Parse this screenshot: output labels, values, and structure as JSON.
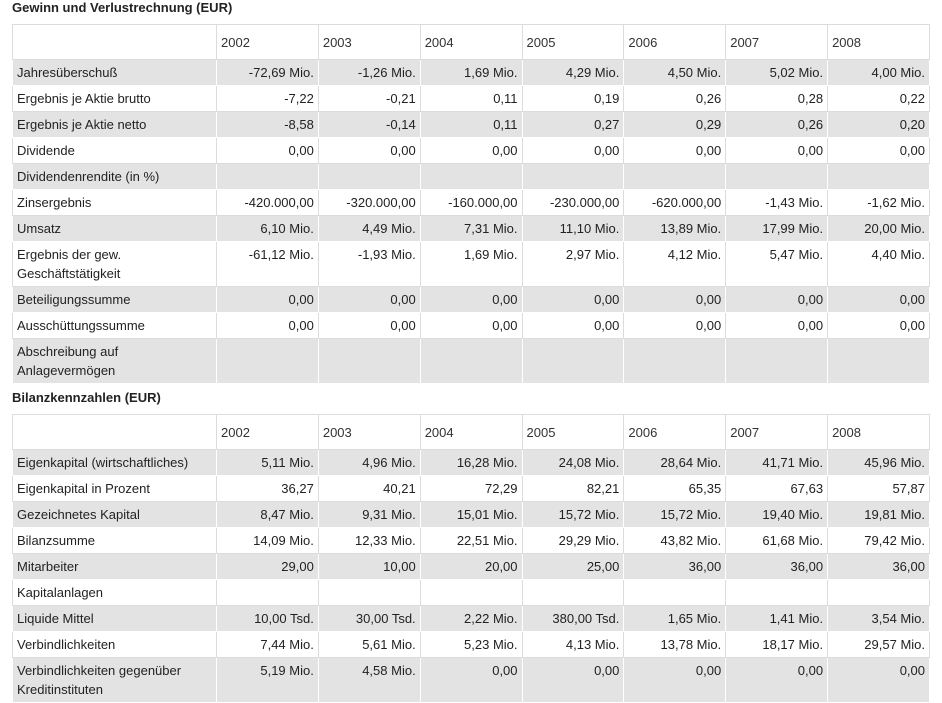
{
  "sections": [
    {
      "title": "Gewinn und Verlustrechnung (EUR)",
      "columns": [
        "2002",
        "2003",
        "2004",
        "2005",
        "2006",
        "2007",
        "2008"
      ],
      "rows": [
        {
          "label": "Jahresüberschuß",
          "values": [
            "-72,69 Mio.",
            "-1,26 Mio.",
            "1,69 Mio.",
            "4,29 Mio.",
            "4,50 Mio.",
            "5,02 Mio.",
            "4,00 Mio."
          ]
        },
        {
          "label": "Ergebnis je Aktie brutto",
          "values": [
            "-7,22",
            "-0,21",
            "0,11",
            "0,19",
            "0,26",
            "0,28",
            "0,22"
          ]
        },
        {
          "label": "Ergebnis je Aktie netto",
          "values": [
            "-8,58",
            "-0,14",
            "0,11",
            "0,27",
            "0,29",
            "0,26",
            "0,20"
          ]
        },
        {
          "label": "Dividende",
          "values": [
            "0,00",
            "0,00",
            "0,00",
            "0,00",
            "0,00",
            "0,00",
            "0,00"
          ]
        },
        {
          "label": "Dividendenrendite (in %)",
          "values": []
        },
        {
          "label": "Zinsergebnis",
          "values": [
            "-420.000,00",
            "-320.000,00",
            "-160.000,00",
            "-230.000,00",
            "-620.000,00",
            "-1,43 Mio.",
            "-1,62 Mio."
          ]
        },
        {
          "label": "Umsatz",
          "values": [
            "6,10 Mio.",
            "4,49 Mio.",
            "7,31 Mio.",
            "11,10 Mio.",
            "13,89 Mio.",
            "17,99 Mio.",
            "20,00 Mio."
          ]
        },
        {
          "label": "Ergebnis der gew. Geschäftstätigkeit",
          "values": [
            "-61,12 Mio.",
            "-1,93 Mio.",
            "1,69 Mio.",
            "2,97 Mio.",
            "4,12 Mio.",
            "5,47 Mio.",
            "4,40 Mio."
          ]
        },
        {
          "label": "Beteiligungssumme",
          "values": [
            "0,00",
            "0,00",
            "0,00",
            "0,00",
            "0,00",
            "0,00",
            "0,00"
          ]
        },
        {
          "label": "Ausschüttungssumme",
          "values": [
            "0,00",
            "0,00",
            "0,00",
            "0,00",
            "0,00",
            "0,00",
            "0,00"
          ]
        },
        {
          "label": "Abschreibung auf Anlagevermögen",
          "values": []
        }
      ]
    },
    {
      "title": "Bilanzkennzahlen (EUR)",
      "columns": [
        "2002",
        "2003",
        "2004",
        "2005",
        "2006",
        "2007",
        "2008"
      ],
      "rows": [
        {
          "label": "Eigenkapital (wirtschaftliches)",
          "values": [
            "5,11 Mio.",
            "4,96 Mio.",
            "16,28 Mio.",
            "24,08 Mio.",
            "28,64 Mio.",
            "41,71 Mio.",
            "45,96 Mio."
          ]
        },
        {
          "label": "Eigenkapital in Prozent",
          "values": [
            "36,27",
            "40,21",
            "72,29",
            "82,21",
            "65,35",
            "67,63",
            "57,87"
          ]
        },
        {
          "label": "Gezeichnetes Kapital",
          "values": [
            "8,47 Mio.",
            "9,31 Mio.",
            "15,01 Mio.",
            "15,72 Mio.",
            "15,72 Mio.",
            "19,40 Mio.",
            "19,81 Mio."
          ]
        },
        {
          "label": "Bilanzsumme",
          "values": [
            "14,09 Mio.",
            "12,33 Mio.",
            "22,51 Mio.",
            "29,29 Mio.",
            "43,82 Mio.",
            "61,68 Mio.",
            "79,42 Mio."
          ]
        },
        {
          "label": "Mitarbeiter",
          "values": [
            "29,00",
            "10,00",
            "20,00",
            "25,00",
            "36,00",
            "36,00",
            "36,00"
          ]
        },
        {
          "label": "Kapitalanlagen",
          "values": []
        },
        {
          "label": "Liquide Mittel",
          "values": [
            "10,00 Tsd.",
            "30,00 Tsd.",
            "2,22 Mio.",
            "380,00 Tsd.",
            "1,65 Mio.",
            "1,41 Mio.",
            "3,54 Mio."
          ]
        },
        {
          "label": "Verbindlichkeiten",
          "values": [
            "7,44 Mio.",
            "5,61 Mio.",
            "5,23 Mio.",
            "4,13 Mio.",
            "13,78 Mio.",
            "18,17 Mio.",
            "29,57 Mio."
          ]
        },
        {
          "label": "Verbindlichkeiten gegenüber Kreditinstituten",
          "values": [
            "5,19 Mio.",
            "4,58 Mio.",
            "0,00",
            "0,00",
            "0,00",
            "0,00",
            "0,00"
          ]
        }
      ]
    }
  ]
}
